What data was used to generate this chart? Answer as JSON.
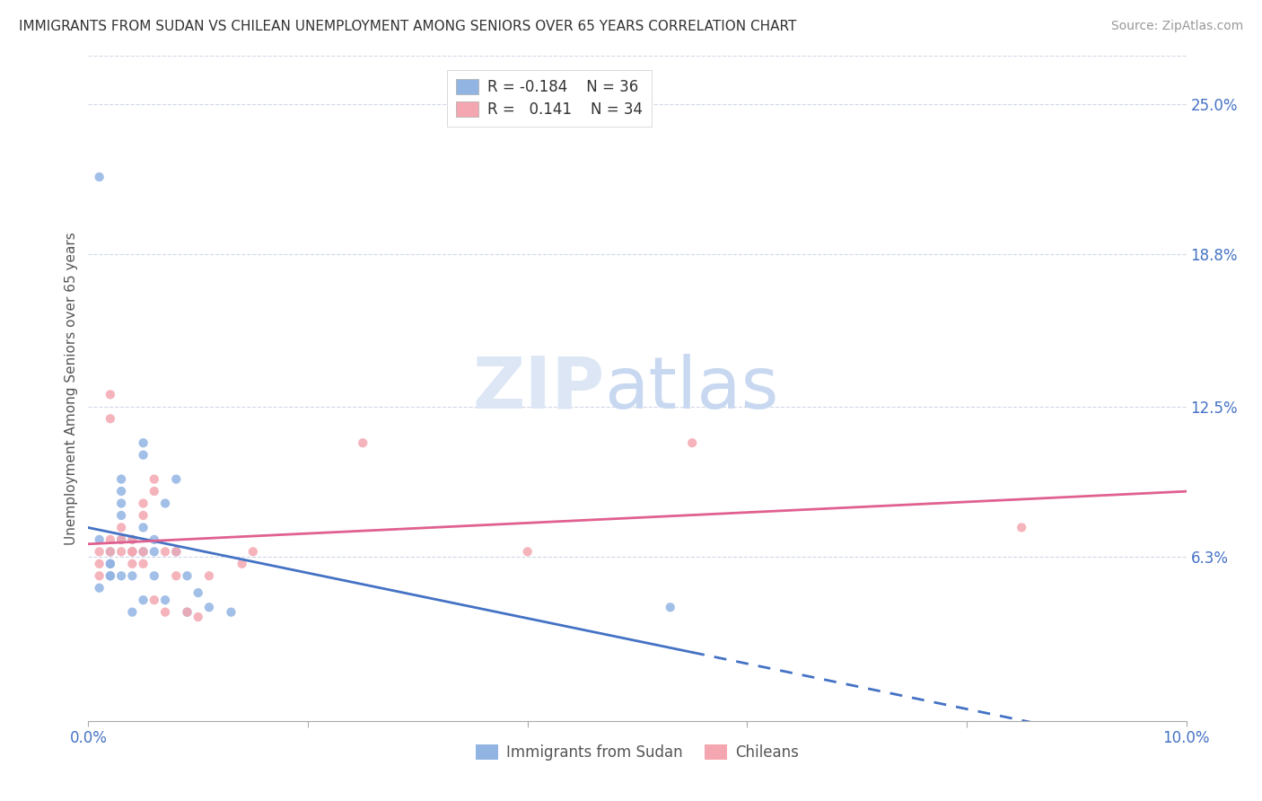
{
  "title": "IMMIGRANTS FROM SUDAN VS CHILEAN UNEMPLOYMENT AMONG SENIORS OVER 65 YEARS CORRELATION CHART",
  "source": "Source: ZipAtlas.com",
  "ylabel": "Unemployment Among Seniors over 65 years",
  "xlim": [
    0.0,
    0.1
  ],
  "ylim": [
    -0.005,
    0.27
  ],
  "right_yticks": [
    0.063,
    0.125,
    0.188,
    0.25
  ],
  "right_yticklabels": [
    "6.3%",
    "12.5%",
    "18.8%",
    "25.0%"
  ],
  "xtick_positions": [
    0.0,
    0.02,
    0.04,
    0.06,
    0.08,
    0.1
  ],
  "xticklabels": [
    "0.0%",
    "",
    "",
    "",
    "",
    "10.0%"
  ],
  "blue_color": "#92b4e3",
  "pink_color": "#f4a7b0",
  "blue_line_color": "#4472c4",
  "pink_line_color": "#e06090",
  "text_color": "#4472c4",
  "grid_color": "#d0d8e8",
  "watermark_zip": "ZIP",
  "watermark_atlas": "atlas",
  "sudan_x": [
    0.001,
    0.001,
    0.002,
    0.002,
    0.002,
    0.002,
    0.002,
    0.003,
    0.003,
    0.003,
    0.003,
    0.003,
    0.003,
    0.004,
    0.004,
    0.004,
    0.004,
    0.005,
    0.005,
    0.005,
    0.005,
    0.005,
    0.006,
    0.006,
    0.006,
    0.007,
    0.007,
    0.008,
    0.008,
    0.009,
    0.009,
    0.01,
    0.011,
    0.013,
    0.053,
    0.001
  ],
  "sudan_y": [
    0.05,
    0.07,
    0.055,
    0.06,
    0.065,
    0.06,
    0.055,
    0.07,
    0.08,
    0.085,
    0.09,
    0.095,
    0.055,
    0.07,
    0.065,
    0.055,
    0.04,
    0.075,
    0.105,
    0.11,
    0.065,
    0.045,
    0.07,
    0.065,
    0.055,
    0.085,
    0.045,
    0.095,
    0.065,
    0.055,
    0.04,
    0.048,
    0.042,
    0.04,
    0.042,
    0.22
  ],
  "chilean_x": [
    0.001,
    0.001,
    0.001,
    0.002,
    0.002,
    0.002,
    0.002,
    0.003,
    0.003,
    0.003,
    0.004,
    0.004,
    0.004,
    0.004,
    0.005,
    0.005,
    0.005,
    0.005,
    0.006,
    0.006,
    0.006,
    0.007,
    0.007,
    0.008,
    0.008,
    0.009,
    0.01,
    0.011,
    0.014,
    0.015,
    0.025,
    0.04,
    0.055,
    0.085
  ],
  "chilean_y": [
    0.065,
    0.06,
    0.055,
    0.065,
    0.07,
    0.12,
    0.13,
    0.065,
    0.07,
    0.075,
    0.065,
    0.07,
    0.06,
    0.065,
    0.08,
    0.085,
    0.065,
    0.06,
    0.09,
    0.095,
    0.045,
    0.065,
    0.04,
    0.055,
    0.065,
    0.04,
    0.038,
    0.055,
    0.06,
    0.065,
    0.11,
    0.065,
    0.11,
    0.075
  ]
}
